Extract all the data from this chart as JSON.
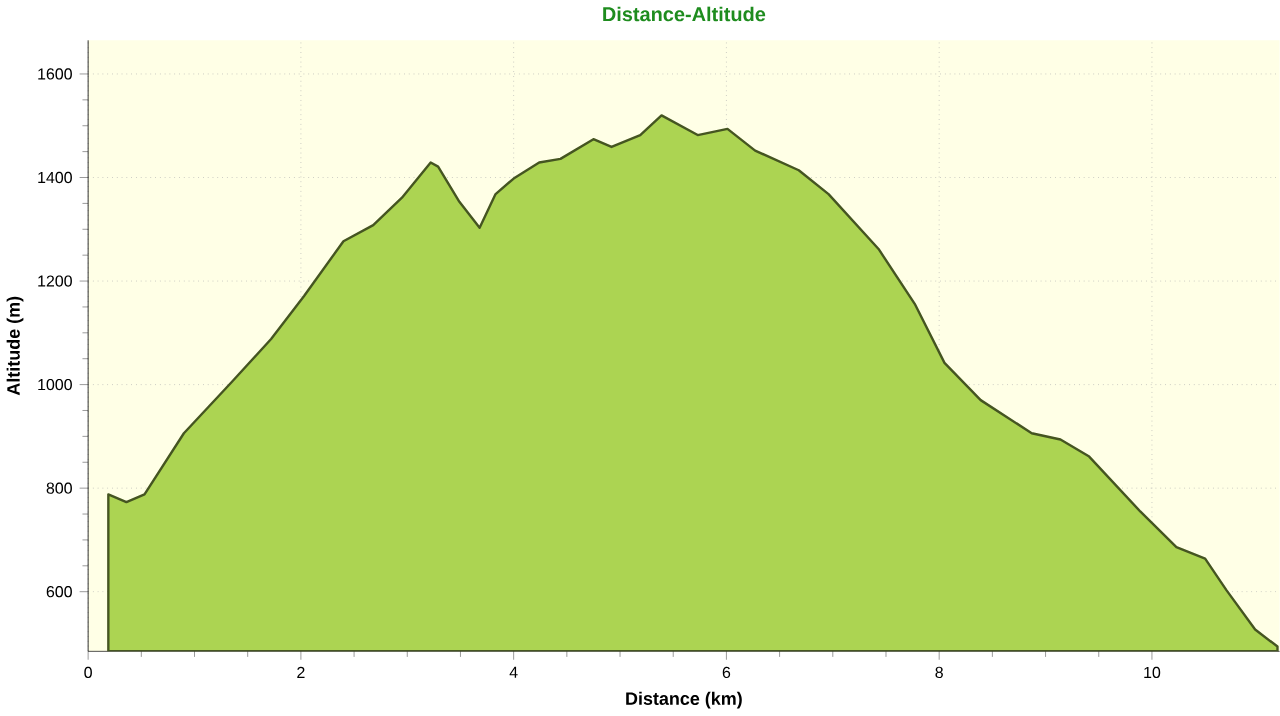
{
  "chart_data": {
    "type": "area",
    "title": "Distance-Altitude",
    "xlabel": "Distance (km)",
    "ylabel": "Altitude (m)",
    "xlim": [
      0,
      11.2
    ],
    "ylim": [
      485,
      1665
    ],
    "xticks": [
      0,
      2,
      4,
      6,
      8,
      10
    ],
    "yticks": [
      600,
      800,
      1000,
      1200,
      1400,
      1600
    ],
    "grid": true,
    "series": [
      {
        "color": "#acd452",
        "x": [
          0.19,
          0.36,
          0.53,
          0.9,
          1.35,
          1.72,
          2.03,
          2.4,
          2.68,
          2.95,
          3.22,
          3.29,
          3.49,
          3.68,
          3.83,
          4.0,
          4.24,
          4.44,
          4.75,
          4.92,
          5.19,
          5.39,
          5.73,
          6.01,
          6.27,
          6.68,
          6.96,
          7.43,
          7.77,
          8.05,
          8.39,
          8.87,
          9.14,
          9.41,
          9.89,
          10.23,
          10.5,
          10.7,
          10.97,
          11.18
        ],
        "values": [
          788,
          773,
          788,
          906,
          1005,
          1088,
          1171,
          1277,
          1308,
          1361,
          1429,
          1421,
          1353,
          1303,
          1368,
          1398,
          1429,
          1436,
          1474,
          1459,
          1482,
          1520,
          1482,
          1494,
          1452,
          1414,
          1368,
          1262,
          1156,
          1042,
          970,
          906,
          894,
          861,
          755,
          686,
          664,
          603,
          527,
          494
        ]
      }
    ]
  }
}
